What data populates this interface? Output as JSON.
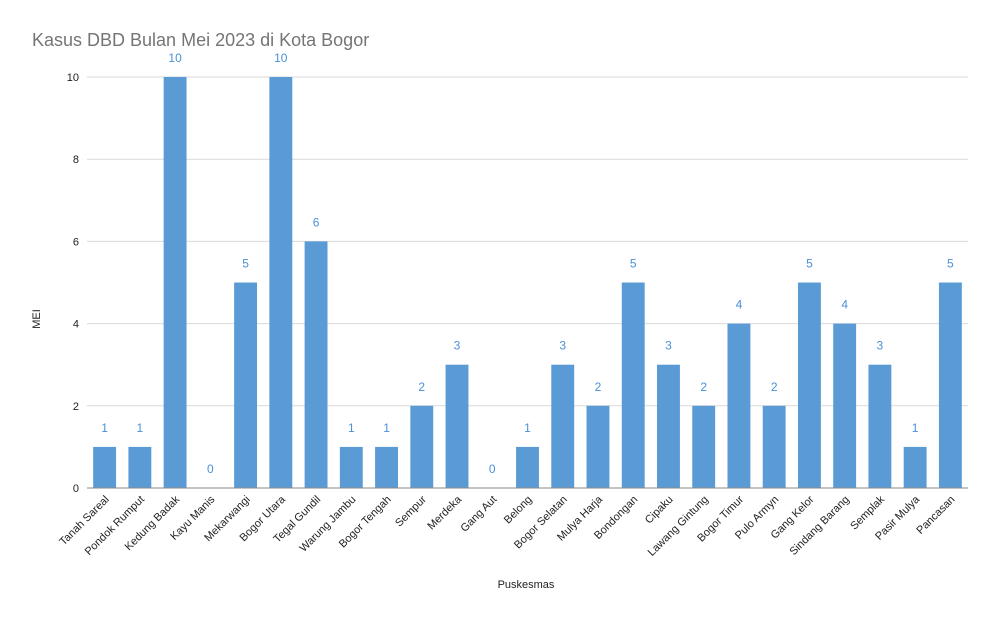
{
  "chart_data": {
    "type": "bar",
    "title": "Kasus DBD Bulan Mei 2023 di Kota Bogor",
    "xlabel": "Puskesmas",
    "ylabel": "MEI",
    "ylim": [
      0,
      10
    ],
    "yticks": [
      0,
      2,
      4,
      6,
      8,
      10
    ],
    "grid": true,
    "bar_color": "#5b9bd5",
    "label_color": "#4a90d9",
    "categories": [
      "Tanah Sareal",
      "Pondok Rumput",
      "Kedung Badak",
      "Kayu Manis",
      "Mekarwangi",
      "Bogor Utara",
      "Tegal Gundil",
      "Warung Jambu",
      "Bogor Tengah",
      "Sempur",
      "Merdeka",
      "Gang Aut",
      "Belong",
      "Bogor Selatan",
      "Mulya Harja",
      "Bondongan",
      "Cipaku",
      "Lawang Gintung",
      "Bogor Timur",
      "Pulo Armyn",
      "Gang Kelor",
      "Sindang Barang",
      "Semplak",
      "Pasir Mulya",
      "Pancasan"
    ],
    "values": [
      1,
      1,
      10,
      0,
      5,
      10,
      6,
      1,
      1,
      2,
      3,
      0,
      1,
      3,
      2,
      5,
      3,
      2,
      4,
      2,
      5,
      4,
      3,
      1,
      5
    ]
  }
}
